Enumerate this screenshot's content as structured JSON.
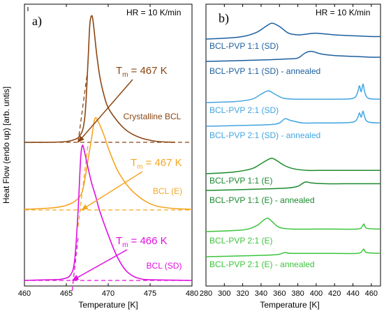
{
  "chart_data": [
    {
      "type": "line",
      "panel_label": "a)",
      "annotation": "HR = 10 K/min",
      "xlabel": "Temperature [K]",
      "ylabel": "Heat Flow (endo up) [arb. untis]",
      "xlim": [
        460,
        480
      ],
      "ylim": [
        0,
        4
      ],
      "xticks": [
        460,
        465,
        470,
        475,
        480
      ],
      "series": [
        {
          "name": "Crystalline BCL",
          "color": "#8B4513",
          "baseline": 2.0,
          "tangent": {
            "x": [
              466.4,
              467.5
            ],
            "y": [
              2.0,
              3.0
            ]
          },
          "points": [
            [
              460,
              2.0
            ],
            [
              463,
              2.0
            ],
            [
              465,
              2.01
            ],
            [
              466,
              2.04
            ],
            [
              466.5,
              2.08
            ],
            [
              467,
              2.2
            ],
            [
              467.3,
              2.5
            ],
            [
              467.6,
              3.2
            ],
            [
              467.8,
              3.7
            ],
            [
              468,
              3.83
            ],
            [
              468.2,
              3.75
            ],
            [
              468.6,
              3.3
            ],
            [
              469,
              2.95
            ],
            [
              469.5,
              2.68
            ],
            [
              470,
              2.5
            ],
            [
              471,
              2.32
            ],
            [
              472,
              2.19
            ],
            [
              473,
              2.11
            ],
            [
              474,
              2.06
            ],
            [
              475,
              2.03
            ],
            [
              476,
              2.01
            ],
            [
              478,
              2.0
            ]
          ]
        },
        {
          "name": "BCL (E)",
          "color": "#F5A623",
          "baseline": 1.02,
          "tangent": {
            "x": [
              466.4,
              467.6
            ],
            "y": [
              0.78,
              1.98
            ]
          },
          "points": [
            [
              460,
              1.03
            ],
            [
              462,
              1.04
            ],
            [
              464,
              1.06
            ],
            [
              465.5,
              1.11
            ],
            [
              466.5,
              1.2
            ],
            [
              467,
              1.33
            ],
            [
              467.5,
              1.68
            ],
            [
              468,
              2.05
            ],
            [
              468.4,
              2.34
            ],
            [
              468.8,
              2.3
            ],
            [
              469.5,
              2.1
            ],
            [
              470,
              1.92
            ],
            [
              471,
              1.62
            ],
            [
              472,
              1.42
            ],
            [
              473,
              1.28
            ],
            [
              474,
              1.18
            ],
            [
              475,
              1.11
            ],
            [
              476,
              1.07
            ],
            [
              478,
              1.04
            ],
            [
              480,
              1.03
            ]
          ]
        },
        {
          "name": "BCL (SD)",
          "color": "#E010E0",
          "baseline": 0.0,
          "tangent": {
            "x": [
              465.7,
              466.4
            ],
            "y": [
              -0.15,
              0.62
            ]
          },
          "points": [
            [
              460,
              0.0
            ],
            [
              463,
              0.01
            ],
            [
              464.5,
              0.02
            ],
            [
              465.5,
              0.08
            ],
            [
              466,
              0.3
            ],
            [
              466.4,
              1.0
            ],
            [
              466.7,
              1.75
            ],
            [
              466.9,
              1.95
            ],
            [
              467.1,
              1.9
            ],
            [
              467.5,
              1.68
            ],
            [
              468,
              1.42
            ],
            [
              468.5,
              1.22
            ],
            [
              469,
              1.0
            ],
            [
              470,
              0.66
            ],
            [
              471,
              0.36
            ],
            [
              472,
              0.16
            ],
            [
              473,
              0.06
            ],
            [
              474,
              0.02
            ],
            [
              475,
              0.01
            ],
            [
              480,
              0.0
            ]
          ]
        }
      ],
      "labels": [
        {
          "text": "Crystalline BCL",
          "series": "Crystalline BCL"
        },
        {
          "text": "BCL (E)",
          "series": "BCL (E)"
        },
        {
          "text": "BCL (SD)",
          "series": "BCL (SD)"
        }
      ],
      "tm_annotations": [
        {
          "base": "T",
          "sub": "m",
          "value": "= 467 K",
          "color": "#8B4513"
        },
        {
          "base": "T",
          "sub": "m",
          "value": "= 467 K",
          "color": "#F5A623"
        },
        {
          "base": "T",
          "sub": "m",
          "value": "= 466 K",
          "color": "#E010E0"
        }
      ]
    },
    {
      "type": "line",
      "panel_label": "b)",
      "annotation": "HR = 10 K/min",
      "xlabel": "Temperature [K]",
      "xlim": [
        280,
        470
      ],
      "xticks": [
        280,
        300,
        320,
        340,
        360,
        380,
        400,
        420,
        440,
        460
      ],
      "series": [
        {
          "name": "BCL-PVP 1:1 (SD)",
          "color": "#1B5E9E",
          "points": [
            [
              280,
              0.0
            ],
            [
              300,
              0.01
            ],
            [
              320,
              0.03
            ],
            [
              335,
              0.08
            ],
            [
              345,
              0.15
            ],
            [
              352,
              0.19
            ],
            [
              360,
              0.15
            ],
            [
              370,
              0.07
            ],
            [
              380,
              0.05
            ],
            [
              390,
              0.06
            ],
            [
              400,
              0.07
            ],
            [
              420,
              0.05
            ],
            [
              440,
              0.04
            ],
            [
              460,
              0.03
            ],
            [
              470,
              0.03
            ]
          ]
        },
        {
          "name": "BCL-PVP 1:1 (SD) - annealed",
          "color": "#1B5E9E",
          "points": [
            [
              280,
              0.0
            ],
            [
              320,
              0.01
            ],
            [
              350,
              0.02
            ],
            [
              370,
              0.03
            ],
            [
              380,
              0.04
            ],
            [
              388,
              0.1
            ],
            [
              395,
              0.12
            ],
            [
              405,
              0.09
            ],
            [
              420,
              0.07
            ],
            [
              440,
              0.06
            ],
            [
              460,
              0.05
            ],
            [
              470,
              0.05
            ]
          ]
        },
        {
          "name": "BCL-PVP 2:1 (SD)",
          "color": "#42A5E0",
          "points": [
            [
              280,
              0.0
            ],
            [
              310,
              0.01
            ],
            [
              330,
              0.04
            ],
            [
              340,
              0.1
            ],
            [
              348,
              0.14
            ],
            [
              355,
              0.1
            ],
            [
              365,
              0.05
            ],
            [
              380,
              0.04
            ],
            [
              400,
              0.04
            ],
            [
              420,
              0.04
            ],
            [
              440,
              0.05
            ],
            [
              445,
              0.12
            ],
            [
              447,
              0.2
            ],
            [
              449,
              0.13
            ],
            [
              451,
              0.22
            ],
            [
              453,
              0.12
            ],
            [
              457,
              0.05
            ],
            [
              470,
              0.04
            ]
          ]
        },
        {
          "name": "BCL-PVP 2:1 (SD) - annealed",
          "color": "#42A5E0",
          "points": [
            [
              280,
              0.0
            ],
            [
              320,
              0.01
            ],
            [
              350,
              0.02
            ],
            [
              360,
              0.04
            ],
            [
              366,
              0.09
            ],
            [
              372,
              0.07
            ],
            [
              385,
              0.04
            ],
            [
              400,
              0.04
            ],
            [
              420,
              0.04
            ],
            [
              440,
              0.05
            ],
            [
              445,
              0.1
            ],
            [
              447,
              0.16
            ],
            [
              449,
              0.11
            ],
            [
              451,
              0.18
            ],
            [
              453,
              0.1
            ],
            [
              457,
              0.05
            ],
            [
              470,
              0.04
            ]
          ]
        },
        {
          "name": "BCL-PVP 1:1 (E)",
          "color": "#1A8A2E",
          "points": [
            [
              280,
              0.0
            ],
            [
              310,
              0.02
            ],
            [
              330,
              0.06
            ],
            [
              340,
              0.12
            ],
            [
              350,
              0.18
            ],
            [
              355,
              0.17
            ],
            [
              365,
              0.1
            ],
            [
              375,
              0.06
            ],
            [
              390,
              0.04
            ],
            [
              410,
              0.04
            ],
            [
              430,
              0.04
            ],
            [
              450,
              0.04
            ],
            [
              470,
              0.04
            ]
          ]
        },
        {
          "name": "BCL-PVP 1:1 (E) - annealed",
          "color": "#1A8A2E",
          "points": [
            [
              280,
              0.0
            ],
            [
              320,
              0.01
            ],
            [
              350,
              0.02
            ],
            [
              370,
              0.03
            ],
            [
              380,
              0.05
            ],
            [
              388,
              0.1
            ],
            [
              395,
              0.09
            ],
            [
              410,
              0.08
            ],
            [
              430,
              0.08
            ],
            [
              450,
              0.08
            ],
            [
              470,
              0.08
            ]
          ]
        },
        {
          "name": "BCL-PVP 2:1 (E)",
          "color": "#3CC43C",
          "points": [
            [
              280,
              0.0
            ],
            [
              320,
              0.02
            ],
            [
              335,
              0.07
            ],
            [
              342,
              0.13
            ],
            [
              347,
              0.16
            ],
            [
              352,
              0.12
            ],
            [
              360,
              0.05
            ],
            [
              375,
              0.03
            ],
            [
              400,
              0.03
            ],
            [
              420,
              0.03
            ],
            [
              445,
              0.03
            ],
            [
              450,
              0.06
            ],
            [
              452,
              0.09
            ],
            [
              455,
              0.04
            ],
            [
              470,
              0.03
            ]
          ]
        },
        {
          "name": "BCL-PVP 2:1 (E) - annealed",
          "color": "#3CC43C",
          "points": [
            [
              280,
              0.0
            ],
            [
              320,
              0.01
            ],
            [
              350,
              0.02
            ],
            [
              360,
              0.03
            ],
            [
              366,
              0.05
            ],
            [
              372,
              0.04
            ],
            [
              390,
              0.04
            ],
            [
              420,
              0.04
            ],
            [
              445,
              0.04
            ],
            [
              450,
              0.07
            ],
            [
              452,
              0.09
            ],
            [
              455,
              0.05
            ],
            [
              470,
              0.04
            ]
          ]
        }
      ]
    }
  ]
}
